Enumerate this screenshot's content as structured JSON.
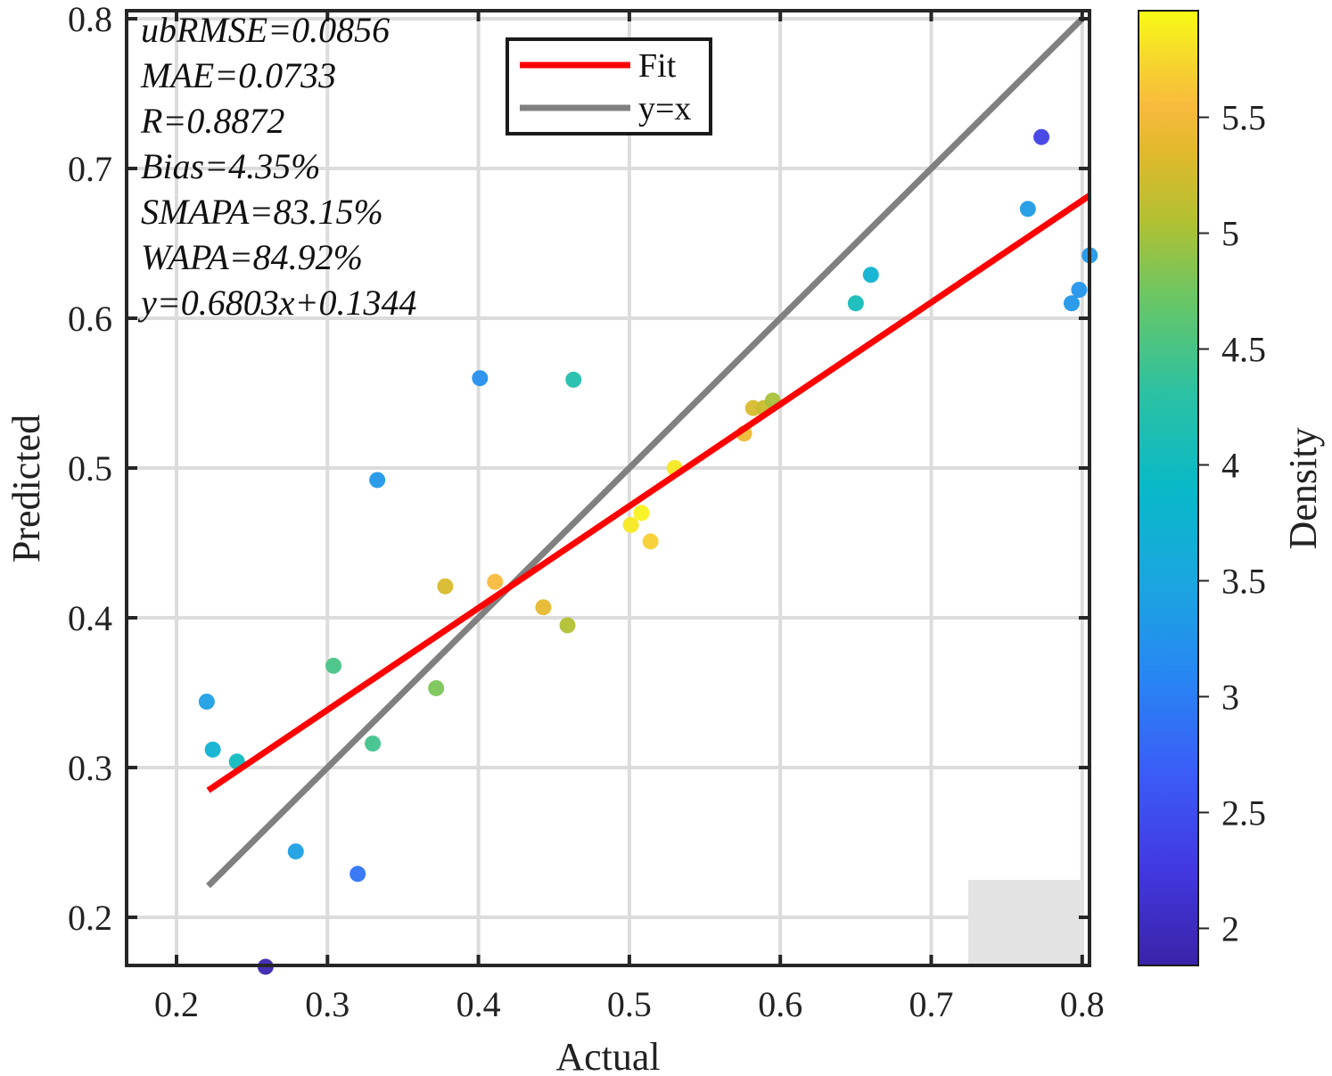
{
  "chart_data": {
    "type": "scatter",
    "title": "",
    "xlabel": "Actual",
    "ylabel": "Predicted",
    "xlim": [
      0.167,
      0.805
    ],
    "ylim": [
      0.168,
      0.806
    ],
    "xticks": [
      0.2,
      0.3,
      0.4,
      0.5,
      0.6,
      0.7,
      0.8
    ],
    "xtick_labels": [
      "0.2",
      "0.3",
      "0.4",
      "0.5",
      "0.6",
      "0.7",
      "0.8"
    ],
    "yticks": [
      0.2,
      0.3,
      0.4,
      0.5,
      0.6,
      0.7,
      0.8
    ],
    "ytick_labels": [
      "0.2",
      "0.3",
      "0.4",
      "0.5",
      "0.6",
      "0.7",
      "0.8"
    ],
    "grid": true,
    "legend": {
      "position": "top-center",
      "entries": [
        {
          "label": "Fit",
          "color": "#ff0000"
        },
        {
          "label": "y=x",
          "color": "#808080"
        }
      ]
    },
    "stats_text": [
      "ubRMSE=0.0856",
      "MAE=0.0733",
      "R=0.8872",
      "Bias=4.35%",
      "SMAPA=83.15%",
      "WAPA=84.92%",
      "y=0.6803x+0.1344"
    ],
    "fit_line": {
      "slope": 0.6803,
      "intercept": 0.1344,
      "x_range": [
        0.221,
        0.805
      ]
    },
    "identity_line": {
      "x_range": [
        0.221,
        0.8
      ]
    },
    "colorbar": {
      "label": "Density",
      "range": [
        1.84,
        5.96
      ],
      "ticks": [
        2,
        2.5,
        3,
        3.5,
        4,
        4.5,
        5,
        5.5
      ],
      "tick_labels": [
        "2",
        "2.5",
        "3",
        "3.5",
        "4",
        "4.5",
        "5",
        "5.5"
      ],
      "colormap": "parula"
    },
    "points": [
      {
        "x": 0.22,
        "y": 0.344,
        "density": 3.4
      },
      {
        "x": 0.224,
        "y": 0.312,
        "density": 3.75
      },
      {
        "x": 0.24,
        "y": 0.304,
        "density": 4.0
      },
      {
        "x": 0.259,
        "y": 0.167,
        "density": 1.9
      },
      {
        "x": 0.279,
        "y": 0.244,
        "density": 3.4
      },
      {
        "x": 0.304,
        "y": 0.368,
        "density": 4.5
      },
      {
        "x": 0.32,
        "y": 0.229,
        "density": 2.9
      },
      {
        "x": 0.33,
        "y": 0.316,
        "density": 4.45
      },
      {
        "x": 0.333,
        "y": 0.492,
        "density": 3.3
      },
      {
        "x": 0.372,
        "y": 0.353,
        "density": 4.8
      },
      {
        "x": 0.378,
        "y": 0.421,
        "density": 5.3
      },
      {
        "x": 0.401,
        "y": 0.56,
        "density": 3.2
      },
      {
        "x": 0.411,
        "y": 0.424,
        "density": 5.55
      },
      {
        "x": 0.443,
        "y": 0.407,
        "density": 5.4
      },
      {
        "x": 0.459,
        "y": 0.395,
        "density": 5.05
      },
      {
        "x": 0.463,
        "y": 0.559,
        "density": 4.2
      },
      {
        "x": 0.501,
        "y": 0.462,
        "density": 5.85
      },
      {
        "x": 0.508,
        "y": 0.47,
        "density": 5.9
      },
      {
        "x": 0.514,
        "y": 0.451,
        "density": 5.7
      },
      {
        "x": 0.53,
        "y": 0.5,
        "density": 5.85
      },
      {
        "x": 0.576,
        "y": 0.523,
        "density": 5.45
      },
      {
        "x": 0.582,
        "y": 0.54,
        "density": 5.3
      },
      {
        "x": 0.589,
        "y": 0.54,
        "density": 5.2
      },
      {
        "x": 0.595,
        "y": 0.545,
        "density": 5.0
      },
      {
        "x": 0.65,
        "y": 0.61,
        "density": 4.05
      },
      {
        "x": 0.66,
        "y": 0.629,
        "density": 3.75
      },
      {
        "x": 0.764,
        "y": 0.673,
        "density": 3.35
      },
      {
        "x": 0.773,
        "y": 0.721,
        "density": 2.35
      },
      {
        "x": 0.793,
        "y": 0.61,
        "density": 3.3
      },
      {
        "x": 0.798,
        "y": 0.619,
        "density": 3.25
      },
      {
        "x": 0.805,
        "y": 0.642,
        "density": 3.3
      }
    ]
  }
}
